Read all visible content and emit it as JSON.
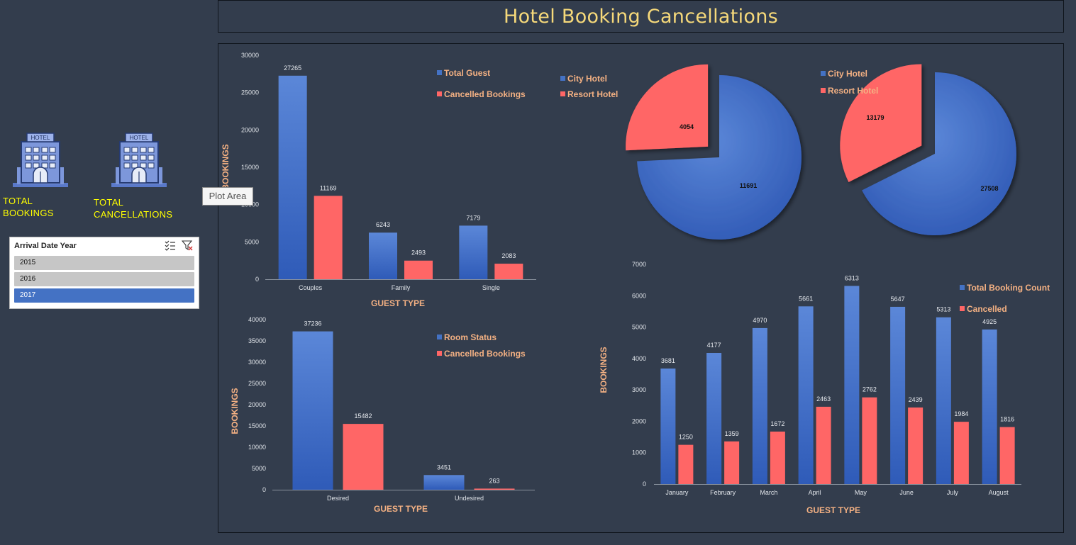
{
  "header": {
    "title": "Hotel Booking Cancellations"
  },
  "kpis": [
    {
      "label_line1": "TOTAL",
      "label_line2": "BOOKINGS"
    },
    {
      "label_line1": "TOTAL",
      "label_line2": "CANCELLATIONS"
    }
  ],
  "hotel_icon": {
    "sign": "HOTEL"
  },
  "slicer": {
    "title": "Arrival Date Year",
    "items": [
      {
        "label": "2015",
        "selected": false
      },
      {
        "label": "2016",
        "selected": false
      },
      {
        "label": "2017",
        "selected": true
      }
    ]
  },
  "tooltip": {
    "text": "Plot Area"
  },
  "colors": {
    "blue": "#4472c4",
    "red": "#ff6666",
    "axis_title": "#f4b183",
    "title": "#f6d97a",
    "kpi": "#ffff00"
  },
  "chart_data": [
    {
      "id": "guest",
      "type": "bar",
      "categories": [
        "Couples",
        "Family",
        "Single"
      ],
      "series": [
        {
          "name": "Total Guest",
          "values": [
            27265,
            6243,
            7179
          ]
        },
        {
          "name": "Cancelled Bookings",
          "values": [
            11169,
            2493,
            2083
          ]
        }
      ],
      "extra_legend": [
        "City Hotel",
        "Resort Hotel"
      ],
      "xlabel": "GUEST TYPE",
      "ylabel": "BOOKINGS",
      "ylim": [
        0,
        30000
      ],
      "yticks": [
        0,
        5000,
        10000,
        15000,
        20000,
        25000,
        30000
      ],
      "grid": false,
      "legend": "top-right"
    },
    {
      "id": "room",
      "type": "bar",
      "categories": [
        "Desired",
        "Undesired"
      ],
      "series": [
        {
          "name": "Room Status",
          "values": [
            37236,
            3451
          ]
        },
        {
          "name": "Cancelled Bookings",
          "values": [
            15482,
            263
          ]
        }
      ],
      "xlabel": "GUEST TYPE",
      "ylabel": "BOOKINGS",
      "ylim": [
        0,
        40000
      ],
      "yticks": [
        0,
        5000,
        10000,
        15000,
        20000,
        25000,
        30000,
        35000,
        40000
      ],
      "grid": false,
      "legend": "top-right"
    },
    {
      "id": "pie1",
      "type": "pie",
      "legend": [
        "City Hotel",
        "Resort Hotel"
      ],
      "slices": [
        {
          "name": "City Hotel",
          "value": 11691
        },
        {
          "name": "Resort Hotel",
          "value": 4054
        }
      ]
    },
    {
      "id": "pie2",
      "type": "pie",
      "legend": [
        "City Hotel",
        "Resort Hotel"
      ],
      "slices": [
        {
          "name": "City Hotel",
          "value": 27508
        },
        {
          "name": "Resort Hotel",
          "value": 13179
        }
      ]
    },
    {
      "id": "monthly",
      "type": "bar",
      "categories": [
        "January",
        "February",
        "March",
        "April",
        "May",
        "June",
        "July",
        "August"
      ],
      "series": [
        {
          "name": "Total Booking Count",
          "values": [
            3681,
            4177,
            4970,
            5661,
            6313,
            5647,
            5313,
            4925
          ]
        },
        {
          "name": "Cancelled",
          "values": [
            1250,
            1359,
            1672,
            2463,
            2762,
            2439,
            1984,
            1816
          ]
        }
      ],
      "xlabel": "GUEST TYPE",
      "ylabel": "BOOKINGS",
      "ylim": [
        0,
        7000
      ],
      "yticks": [
        0,
        1000,
        2000,
        3000,
        4000,
        5000,
        6000,
        7000
      ],
      "grid": false,
      "legend": "top-right"
    }
  ]
}
